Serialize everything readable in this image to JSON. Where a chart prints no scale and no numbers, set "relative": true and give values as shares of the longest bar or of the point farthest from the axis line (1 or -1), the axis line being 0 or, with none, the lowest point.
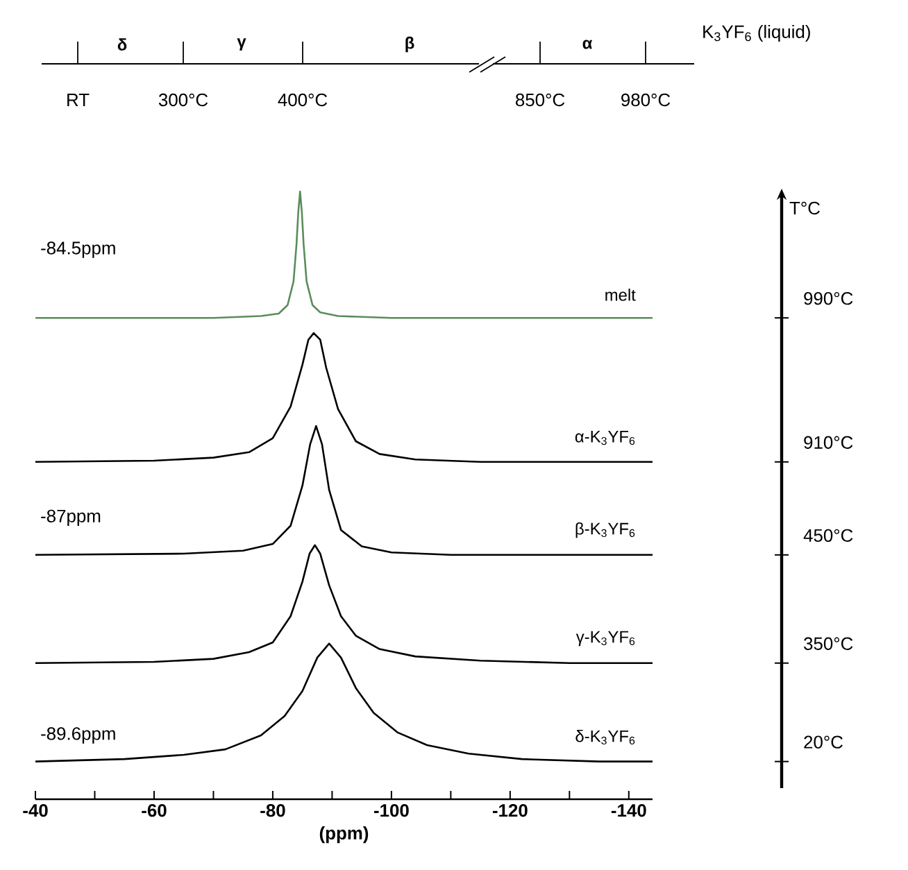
{
  "chart_data": {
    "type": "line",
    "relative": true,
    "xlabel": "(ppm)",
    "xlim": [
      -40,
      -144
    ],
    "xticks": [
      -40,
      {
        "value": -50,
        "label": null
      },
      -60,
      {
        "value": -70,
        "label": null
      },
      -80,
      {
        "value": -90,
        "label": null
      },
      -100,
      {
        "value": -110,
        "label": null
      },
      -120,
      {
        "value": -130,
        "label": null
      },
      -140
    ],
    "series": [
      {
        "name": "melt",
        "color": "#5b8c5a",
        "x": [
          -40,
          -70,
          -78,
          -81,
          -82.5,
          -83.5,
          -84,
          -84.3,
          -84.6,
          -84.9,
          -85.2,
          -85.7,
          -86.7,
          -88,
          -91,
          -100,
          -120,
          -144
        ],
        "values": [
          0.792,
          0.792,
          0.795,
          0.799,
          0.813,
          0.852,
          0.913,
          0.966,
          1.0,
          0.966,
          0.913,
          0.852,
          0.813,
          0.801,
          0.795,
          0.792,
          0.792,
          0.792
        ]
      },
      {
        "name": "α-K$_{3}$YF$_{6}$",
        "color": "#000000",
        "x": [
          -40,
          -60,
          -70,
          -76,
          -80,
          -83,
          -85,
          -86,
          -86.9,
          -88,
          -89,
          -91,
          -94,
          -98,
          -104,
          -115,
          -130,
          -144
        ],
        "values": [
          0.555,
          0.557,
          0.562,
          0.571,
          0.594,
          0.646,
          0.715,
          0.756,
          0.767,
          0.756,
          0.71,
          0.642,
          0.589,
          0.568,
          0.559,
          0.555,
          0.555,
          0.555
        ]
      },
      {
        "name": "β-K$_{3}$YF$_{6}$",
        "color": "#000000",
        "x": [
          -40,
          -65,
          -75,
          -80,
          -83,
          -85,
          -86.3,
          -87.3,
          -88.3,
          -89.5,
          -91.5,
          -95,
          -100,
          -110,
          -125,
          -144
        ],
        "values": [
          0.402,
          0.404,
          0.409,
          0.42,
          0.45,
          0.516,
          0.584,
          0.614,
          0.584,
          0.509,
          0.443,
          0.416,
          0.406,
          0.402,
          0.402,
          0.402
        ]
      },
      {
        "name": "γ-K$_{3}$YF$_{6}$",
        "color": "#000000",
        "x": [
          -40,
          -60,
          -70,
          -76,
          -80,
          -83,
          -85,
          -86.2,
          -87.1,
          -88,
          -89.5,
          -91.5,
          -94,
          -98,
          -104,
          -115,
          -130,
          -144
        ],
        "values": [
          0.224,
          0.226,
          0.231,
          0.242,
          0.258,
          0.301,
          0.358,
          0.404,
          0.418,
          0.404,
          0.352,
          0.301,
          0.269,
          0.247,
          0.235,
          0.228,
          0.224,
          0.224
        ]
      },
      {
        "name": "δ-K$_{3}$YF$_{6}$",
        "color": "#000000",
        "x": [
          -40,
          -55,
          -65,
          -72,
          -78,
          -82,
          -85,
          -87.5,
          -89.5,
          -91.5,
          -94,
          -97,
          -101,
          -106,
          -113,
          -122,
          -135,
          -144
        ],
        "values": [
          0.062,
          0.066,
          0.073,
          0.082,
          0.105,
          0.137,
          0.178,
          0.233,
          0.256,
          0.233,
          0.183,
          0.142,
          0.11,
          0.089,
          0.075,
          0.066,
          0.062,
          0.062
        ]
      }
    ],
    "annotations": [
      "-84.5ppm",
      "-87ppm",
      "-89.6ppm",
      "δ",
      "γ",
      "β",
      "α",
      "RT",
      "300°C",
      "400°C",
      "850°C",
      "980°C",
      "K$_{3}$YF$_{6}$ (liquid)",
      "T°C",
      "990°C",
      "910°C",
      "450°C",
      "350°C",
      "20°C"
    ]
  }
}
